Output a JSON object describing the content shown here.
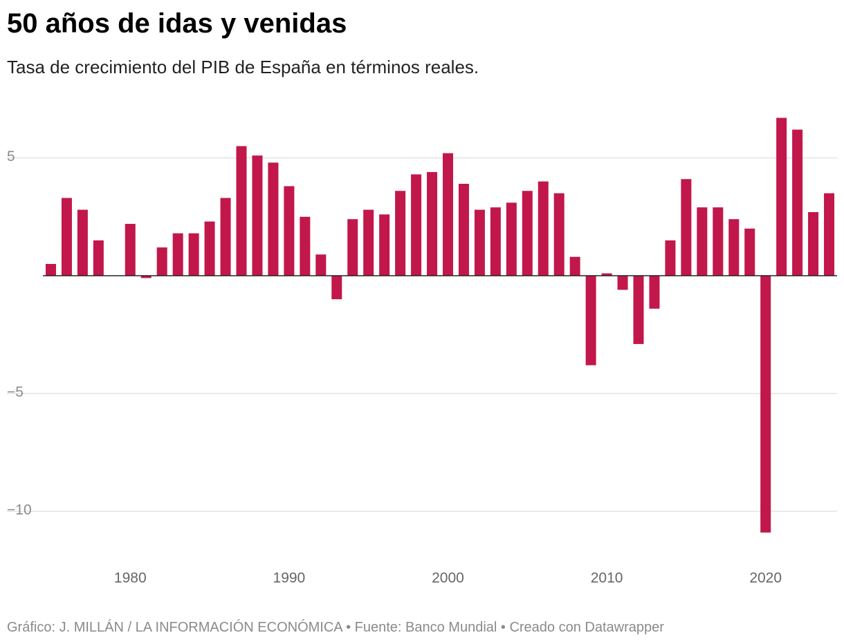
{
  "title": "50 años de idas y venidas",
  "subtitle": "Tasa de crecimiento del PIB de España en términos reales.",
  "footer": "Gráfico: J. MILLÁN / LA INFORMACIÓN ECONÓMICA • Fuente: Banco Mundial • Creado con Datawrapper",
  "colors": {
    "bar": "#c2174a",
    "grid": "#e3e3e3",
    "zero": "#222222"
  },
  "chart_data": {
    "type": "bar",
    "x": [
      1975,
      1976,
      1977,
      1978,
      1979,
      1980,
      1981,
      1982,
      1983,
      1984,
      1985,
      1986,
      1987,
      1988,
      1989,
      1990,
      1991,
      1992,
      1993,
      1994,
      1995,
      1996,
      1997,
      1998,
      1999,
      2000,
      2001,
      2002,
      2003,
      2004,
      2005,
      2006,
      2007,
      2008,
      2009,
      2010,
      2011,
      2012,
      2013,
      2014,
      2015,
      2016,
      2017,
      2018,
      2019,
      2020,
      2021,
      2022,
      2023,
      2024
    ],
    "values": [
      0.5,
      3.3,
      2.8,
      1.5,
      0.0,
      2.2,
      -0.1,
      1.2,
      1.8,
      1.8,
      2.3,
      3.3,
      5.5,
      5.1,
      4.8,
      3.8,
      2.5,
      0.9,
      -1.0,
      2.4,
      2.8,
      2.6,
      3.6,
      4.3,
      4.4,
      5.2,
      3.9,
      2.8,
      2.9,
      3.1,
      3.6,
      4.0,
      3.5,
      0.8,
      -3.8,
      0.1,
      -0.6,
      -2.9,
      -1.4,
      1.5,
      4.1,
      2.9,
      2.9,
      2.4,
      2.0,
      -10.9,
      6.7,
      6.2,
      2.7,
      3.5
    ],
    "x_ticks": [
      "1980",
      "1990",
      "2000",
      "2010",
      "2020"
    ],
    "y_ticks": [
      5,
      -5,
      -10
    ],
    "y_tick_labels": [
      "5",
      "−5",
      "−10"
    ],
    "ylim": [
      -12,
      7.5
    ],
    "xlabel": "",
    "ylabel": "",
    "grid": true
  }
}
